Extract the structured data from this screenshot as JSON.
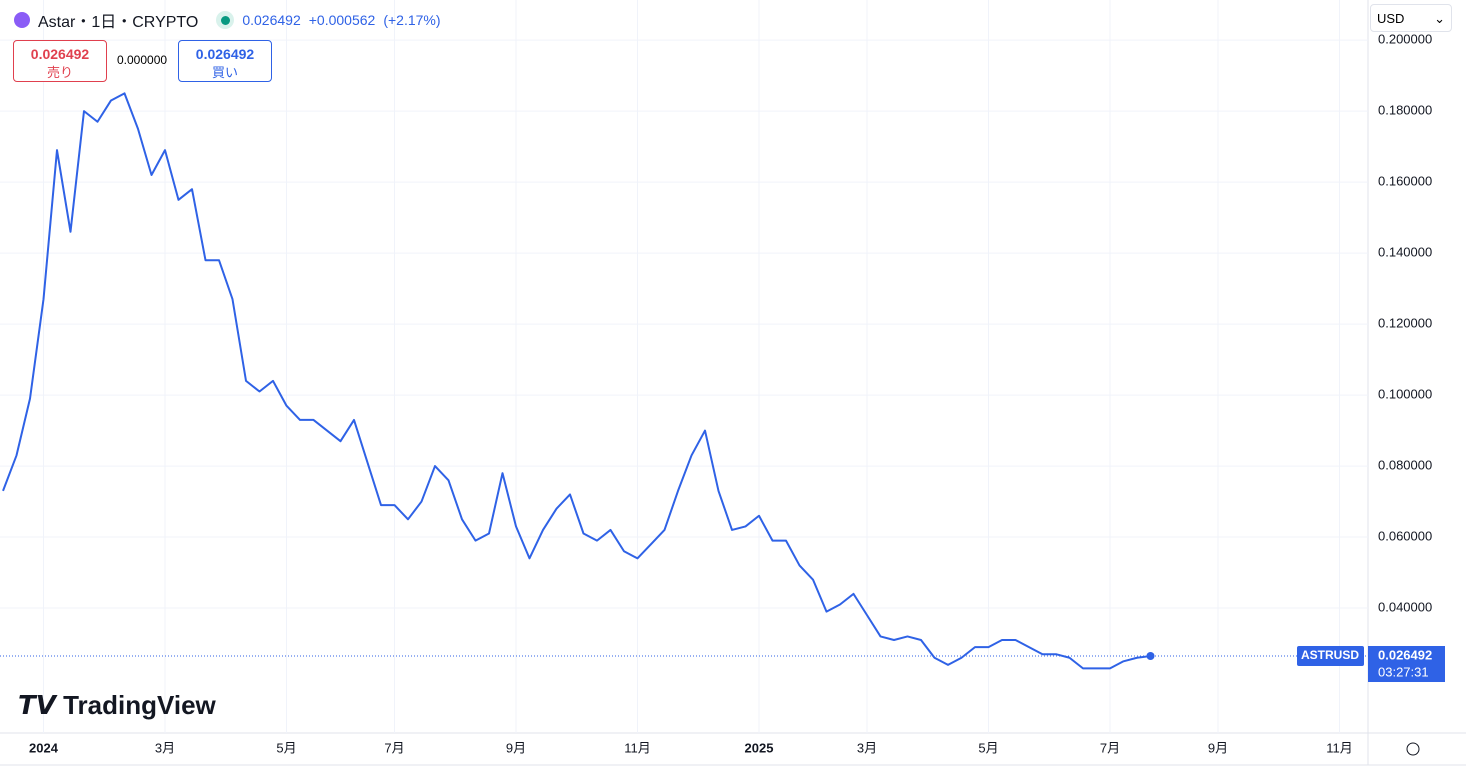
{
  "header": {
    "symbol": "Astar・1日・CRYPTO",
    "price": 0.026492,
    "change": "+0.000562",
    "change_pct": "(+2.17%)",
    "currency": "USD"
  },
  "trade": {
    "sell_price": 0.026492,
    "sell_label": "売り",
    "spread": "0.000000",
    "buy_price": 0.026492,
    "buy_label": "買い"
  },
  "logo": "TradingView",
  "chart_data": {
    "type": "line",
    "ticker": "ASTRUSD",
    "last_price": 0.026492,
    "countdown": "03:27:31",
    "color": "#2f62e6",
    "grid": true,
    "categories": [
      null,
      null,
      null,
      "2024",
      null,
      null,
      null,
      null,
      null,
      null,
      null,
      null,
      "3月",
      null,
      null,
      null,
      null,
      null,
      null,
      null,
      null,
      "5月",
      null,
      null,
      null,
      null,
      null,
      null,
      null,
      "7月",
      null,
      null,
      null,
      null,
      null,
      null,
      null,
      null,
      "9月",
      null,
      null,
      null,
      null,
      null,
      null,
      null,
      null,
      "11月",
      null,
      null,
      null,
      null,
      null,
      null,
      null,
      null,
      "2025",
      null,
      null,
      null,
      null,
      null,
      null,
      null,
      "3月",
      null,
      null,
      null,
      null,
      null,
      null,
      null,
      null,
      "5月",
      null,
      null,
      null,
      null,
      null,
      null,
      null,
      null,
      "7月",
      null,
      null,
      null,
      null,
      null,
      null,
      null,
      "9月",
      null,
      null,
      null,
      null,
      null,
      null,
      null,
      null,
      "11月",
      null,
      null
    ],
    "values": [
      0.073,
      0.083,
      0.099,
      0.127,
      0.169,
      0.146,
      0.18,
      0.177,
      0.183,
      0.185,
      0.175,
      0.162,
      0.169,
      0.155,
      0.158,
      0.138,
      0.138,
      0.127,
      0.104,
      0.101,
      0.104,
      0.097,
      0.093,
      0.093,
      0.09,
      0.087,
      0.093,
      0.081,
      0.069,
      0.069,
      0.065,
      0.07,
      0.08,
      0.076,
      0.065,
      0.059,
      0.061,
      0.078,
      0.063,
      0.054,
      0.062,
      0.068,
      0.072,
      0.061,
      0.059,
      0.062,
      0.056,
      0.054,
      0.058,
      0.062,
      0.073,
      0.083,
      0.09,
      0.073,
      0.062,
      0.063,
      0.066,
      0.059,
      0.059,
      0.052,
      0.048,
      0.039,
      0.041,
      0.044,
      0.038,
      0.032,
      0.031,
      0.032,
      0.031,
      0.026,
      0.024,
      0.026,
      0.029,
      0.029,
      0.031,
      0.031,
      0.029,
      0.027,
      0.027,
      0.026,
      0.023,
      0.023,
      0.023,
      0.025,
      0.026,
      0.026492,
      null,
      null,
      null,
      null,
      null,
      null,
      null,
      null,
      null,
      null,
      null,
      null,
      null,
      null,
      null,
      null
    ],
    "ylim": [
      0.0048,
      0.2113
    ],
    "yticks": [
      {
        "value": 0.04,
        "label": "0.040000"
      },
      {
        "value": 0.06,
        "label": "0.060000"
      },
      {
        "value": 0.08,
        "label": "0.080000"
      },
      {
        "value": 0.1,
        "label": "0.100000"
      },
      {
        "value": 0.12,
        "label": "0.120000"
      },
      {
        "value": 0.14,
        "label": "0.140000"
      },
      {
        "value": 0.16,
        "label": "0.160000"
      },
      {
        "value": 0.18,
        "label": "0.180000"
      },
      {
        "value": 0.2,
        "label": "0.200000"
      }
    ]
  }
}
